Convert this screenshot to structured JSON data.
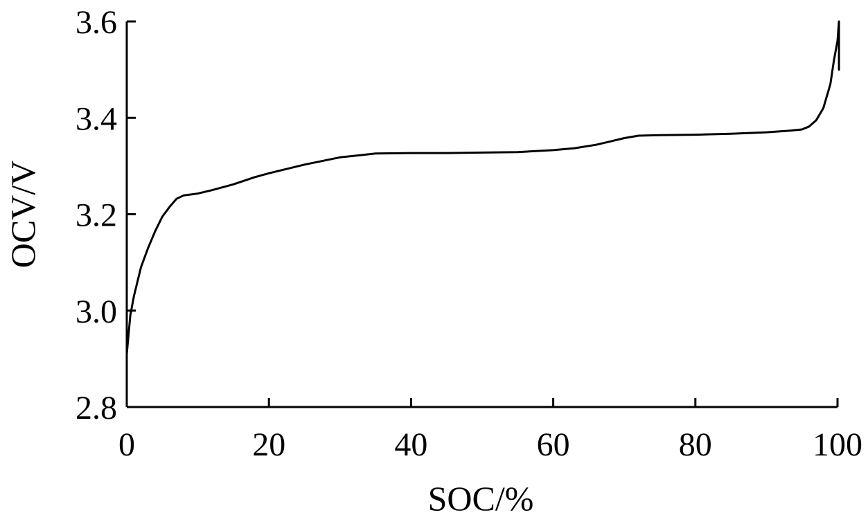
{
  "chart_data": {
    "type": "line",
    "title": "",
    "xlabel": "SOC/%",
    "ylabel": "OCV/V",
    "xlim": [
      0,
      100
    ],
    "ylim": [
      2.8,
      3.6
    ],
    "x_ticks": [
      0,
      20,
      40,
      60,
      80,
      100
    ],
    "y_ticks": [
      2.8,
      3.0,
      3.2,
      3.4,
      3.6
    ],
    "x_tick_labels": [
      "0",
      "20",
      "40",
      "60",
      "80",
      "100"
    ],
    "y_tick_labels": [
      "2.8",
      "3.0",
      "3.2",
      "3.4",
      "3.6"
    ],
    "grid": false,
    "series": [
      {
        "color": "#000000",
        "x": [
          0,
          0.5,
          1,
          2,
          3,
          4,
          5,
          6,
          7,
          8,
          10,
          12,
          15,
          18,
          20,
          25,
          30,
          35,
          40,
          45,
          50,
          55,
          60,
          63,
          66,
          68,
          70,
          72,
          75,
          80,
          85,
          90,
          93,
          95,
          96,
          97,
          98,
          99,
          99.5,
          100,
          100.2,
          100.2
        ],
        "y": [
          2.91,
          2.99,
          3.03,
          3.09,
          3.13,
          3.165,
          3.195,
          3.215,
          3.232,
          3.239,
          3.243,
          3.25,
          3.262,
          3.277,
          3.285,
          3.303,
          3.318,
          3.326,
          3.327,
          3.327,
          3.328,
          3.329,
          3.333,
          3.337,
          3.344,
          3.351,
          3.358,
          3.363,
          3.364,
          3.365,
          3.367,
          3.37,
          3.373,
          3.376,
          3.382,
          3.395,
          3.42,
          3.47,
          3.52,
          3.56,
          3.6,
          3.5
        ]
      }
    ]
  }
}
